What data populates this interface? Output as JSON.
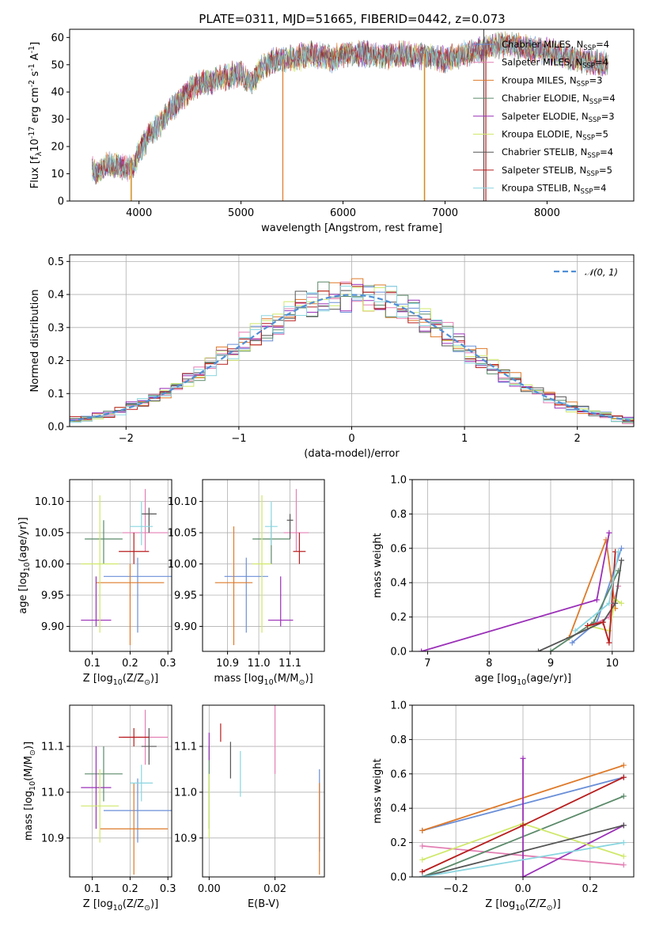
{
  "figure": {
    "title": "PLATE=0311, MJD=51665, FIBERID=0442, z=0.073"
  },
  "series": [
    {
      "name": "Chabrier MILES, N$_{SSP}$=4",
      "label_main": "Chabrier MILES, N",
      "label_sub": "SSP",
      "label_tail": "=4",
      "color": "#6a8fd8"
    },
    {
      "name": "Salpeter MILES, N$_{SSP}$=4",
      "label_main": "Salpeter MILES, N",
      "label_sub": "SSP",
      "label_tail": "=4",
      "color": "#e37fb3"
    },
    {
      "name": "Kroupa MILES, N$_{SSP}$=3",
      "label_main": "Kroupa MILES, N",
      "label_sub": "SSP",
      "label_tail": "=3",
      "color": "#de7a2a"
    },
    {
      "name": "Chabrier ELODIE, N$_{SSP}$=4",
      "label_main": "Chabrier ELODIE, N",
      "label_sub": "SSP",
      "label_tail": "=4",
      "color": "#5b8a6a"
    },
    {
      "name": "Salpeter ELODIE, N$_{SSP}$=3",
      "label_main": "Salpeter ELODIE, N",
      "label_sub": "SSP",
      "label_tail": "=3",
      "color": "#9b30b8"
    },
    {
      "name": "Kroupa ELODIE, N$_{SSP}$=5",
      "label_main": "Kroupa ELODIE, N",
      "label_sub": "SSP",
      "label_tail": "=5",
      "color": "#cfe86a"
    },
    {
      "name": "Chabrier STELIB, N$_{SSP}$=4",
      "label_main": "Chabrier STELIB, N",
      "label_sub": "SSP",
      "label_tail": "=4",
      "color": "#555555"
    },
    {
      "name": "Salpeter STELIB, N$_{SSP}$=5",
      "label_main": "Salpeter STELIB, N",
      "label_sub": "SSP",
      "label_tail": "=5",
      "color": "#b81d1d"
    },
    {
      "name": "Kroupa STELIB, N$_{SSP}$=4",
      "label_main": "Kroupa STELIB, N",
      "label_sub": "SSP",
      "label_tail": "=4",
      "color": "#8ad6e0"
    }
  ],
  "chart_data": [
    {
      "id": "spectrum",
      "type": "line",
      "title": "PLATE=0311, MJD=51665, FIBERID=0442, z=0.073",
      "xlabel": "wavelength [Angstrom, rest frame]",
      "ylabel": "Flux [f$_\\lambda$10$^{-17}$ erg cm$^{-2}$ s$^{-1}$ A$^{-1}$]",
      "xlim": [
        3320,
        8850
      ],
      "ylim": [
        0,
        63
      ],
      "xticks": [
        4000,
        5000,
        6000,
        7000,
        8000
      ],
      "yticks": [
        0,
        10,
        20,
        30,
        40,
        50,
        60
      ],
      "grid": false,
      "legend": "right",
      "spectrum_envelope": {
        "x": [
          3540,
          3600,
          3700,
          3800,
          3900,
          3950,
          4000,
          4100,
          4200,
          4300,
          4400,
          4500,
          4600,
          4700,
          4800,
          4900,
          5000,
          5100,
          5200,
          5300,
          5400,
          5500,
          5600,
          5700,
          5800,
          5900,
          6000,
          6200,
          6400,
          6600,
          6800,
          7000,
          7200,
          7400,
          7600,
          7800,
          8000,
          8200,
          8400,
          8600
        ],
        "y": [
          12,
          10,
          14,
          13,
          12,
          13,
          18,
          24,
          28,
          33,
          37,
          41,
          43,
          44,
          45,
          46,
          47,
          43,
          49,
          51,
          52,
          52,
          53,
          54,
          53,
          52,
          54,
          54,
          53,
          54,
          53,
          52,
          54,
          56,
          58,
          56,
          55,
          53,
          51,
          50
        ]
      },
      "spikes": [
        {
          "x": 3920,
          "y_low": 0,
          "y_high": 14,
          "series_color": "#cfe86a"
        },
        {
          "x": 3925,
          "y_low": 0,
          "y_high": 14,
          "series_color": "#de7a2a"
        },
        {
          "x": 5410,
          "y_low": 0,
          "y_high": 52,
          "series_color": "#de7a2a"
        },
        {
          "x": 6795,
          "y_low": 0,
          "y_high": 54,
          "series_color": "#cfe86a"
        },
        {
          "x": 6800,
          "y_low": 0,
          "y_high": 54,
          "series_color": "#de7a2a"
        },
        {
          "x": 7380,
          "y_low": 0,
          "y_high": 63,
          "series_color": "#555555"
        },
        {
          "x": 7400,
          "y_low": 0,
          "y_high": 58,
          "series_color": "#b81d1d"
        }
      ]
    },
    {
      "id": "residuals",
      "type": "line",
      "xlabel": "(data-model)/error",
      "ylabel": "Normed distribution",
      "xlim": [
        -2.5,
        2.5
      ],
      "ylim": [
        0,
        0.52
      ],
      "xticks": [
        -2,
        -1,
        0,
        1,
        2
      ],
      "yticks": [
        0.0,
        0.1,
        0.2,
        0.3,
        0.4,
        0.5
      ],
      "grid": true,
      "legend": "top-right",
      "reference_label": "$\\mathcal{N}(0,1)$",
      "reference_label_text": "𝒩(0, 1)",
      "reference_color": "#4f8fd6"
    },
    {
      "id": "age_vs_Z",
      "type": "scatter",
      "xlabel": "Z [log$_{10}$(Z/Z$_\\odot$)]",
      "ylabel": "age  [log$_{10}$(age/yr)]",
      "xlim": [
        0.04,
        0.31
      ],
      "ylim": [
        9.86,
        10.135
      ],
      "xticks": [
        0.1,
        0.2,
        0.3
      ],
      "yticks": [
        9.9,
        9.95,
        10.0,
        10.05,
        10.1
      ],
      "grid": true,
      "points": [
        {
          "x": 0.22,
          "y": 9.98,
          "xerr": 0.09,
          "yerr_low": 0.09,
          "yerr_high": 0.03
        },
        {
          "x": 0.24,
          "y": 10.05,
          "xerr": 0.06,
          "yerr_low": 0.03,
          "yerr_high": 0.07
        },
        {
          "x": 0.2,
          "y": 9.97,
          "xerr": 0.09,
          "yerr_low": 0.1,
          "yerr_high": 0.03
        },
        {
          "x": 0.13,
          "y": 10.04,
          "xerr": 0.05,
          "yerr_low": 0.04,
          "yerr_high": 0.03
        },
        {
          "x": 0.11,
          "y": 9.91,
          "xerr": 0.04,
          "yerr_low": 0.01,
          "yerr_high": 0.07
        },
        {
          "x": 0.12,
          "y": 10.0,
          "xerr": 0.05,
          "yerr_low": 0.11,
          "yerr_high": 0.11
        },
        {
          "x": 0.25,
          "y": 10.08,
          "xerr": 0.02,
          "yerr_low": 0.03,
          "yerr_high": 0.01
        },
        {
          "x": 0.21,
          "y": 10.02,
          "xerr": 0.04,
          "yerr_low": 0.02,
          "yerr_high": 0.03
        },
        {
          "x": 0.23,
          "y": 10.06,
          "xerr": 0.03,
          "yerr_low": 0.03,
          "yerr_high": 0.04
        }
      ]
    },
    {
      "id": "age_vs_mass",
      "type": "scatter",
      "xlabel": "mass [log$_{10}$(M/M$_\\odot$)]",
      "ylabel": "",
      "xlim": [
        10.82,
        11.21
      ],
      "ylim": [
        9.86,
        10.135
      ],
      "xticks": [
        10.9,
        11.0,
        11.1
      ],
      "yticks": [
        9.9,
        9.95,
        10.0,
        10.05,
        10.1
      ],
      "grid": true,
      "points": [
        {
          "x": 10.96,
          "y": 9.98,
          "xerr": 0.07,
          "yerr_low": 0.09,
          "yerr_high": 0.03
        },
        {
          "x": 11.12,
          "y": 10.05,
          "xerr": 0.04,
          "yerr_low": 0.03,
          "yerr_high": 0.07
        },
        {
          "x": 10.92,
          "y": 9.97,
          "xerr": 0.06,
          "yerr_low": 0.1,
          "yerr_high": 0.09
        },
        {
          "x": 11.04,
          "y": 10.04,
          "xerr": 0.06,
          "yerr_low": 0.04,
          "yerr_high": 0.03
        },
        {
          "x": 11.07,
          "y": 9.91,
          "xerr": 0.04,
          "yerr_low": 0.01,
          "yerr_high": 0.07
        },
        {
          "x": 11.01,
          "y": 10.0,
          "xerr": 0.03,
          "yerr_low": 0.11,
          "yerr_high": 0.11
        },
        {
          "x": 11.1,
          "y": 10.07,
          "xerr": 0.01,
          "yerr_low": 0.03,
          "yerr_high": 0.01
        },
        {
          "x": 11.13,
          "y": 10.02,
          "xerr": 0.02,
          "yerr_low": 0.02,
          "yerr_high": 0.03
        },
        {
          "x": 11.04,
          "y": 10.06,
          "xerr": 0.02,
          "yerr_low": 0.03,
          "yerr_high": 0.04
        }
      ]
    },
    {
      "id": "weight_vs_age",
      "type": "line",
      "xlabel": "age  [log$_{10}$(age/yr)]",
      "ylabel": "mass weight",
      "xlim": [
        6.75,
        10.35
      ],
      "ylim": [
        0,
        1.0
      ],
      "xticks": [
        7,
        8,
        9,
        10
      ],
      "yticks": [
        0.0,
        0.2,
        0.4,
        0.6,
        0.8,
        1.0
      ],
      "grid": true,
      "series_points": [
        {
          "x": [
            9.35,
            9.75,
            10.15
          ],
          "y": [
            0.05,
            0.17,
            0.6
          ]
        },
        {
          "x": [
            9.65,
            9.95,
            10.1
          ],
          "y": [
            0.15,
            0.2,
            0.38
          ]
        },
        {
          "x": [
            9.3,
            9.9,
            10.05
          ],
          "y": [
            0.08,
            0.65,
            0.25
          ]
        },
        {
          "x": [
            9.0,
            9.7,
            10.1
          ],
          "y": [
            0.0,
            0.17,
            0.47
          ]
        },
        {
          "x": [
            6.9,
            9.75,
            9.95
          ],
          "y": [
            0.0,
            0.3,
            0.69
          ]
        },
        {
          "x": [
            9.6,
            9.95,
            10.05,
            10.15
          ],
          "y": [
            0.15,
            0.12,
            0.3,
            0.28
          ]
        },
        {
          "x": [
            8.8,
            9.85,
            10.05,
            10.15
          ],
          "y": [
            0.0,
            0.17,
            0.28,
            0.53
          ]
        },
        {
          "x": [
            9.6,
            9.85,
            9.95,
            10.05
          ],
          "y": [
            0.15,
            0.17,
            0.05,
            0.58
          ]
        },
        {
          "x": [
            9.4,
            9.95,
            10.1
          ],
          "y": [
            0.12,
            0.28,
            0.58
          ]
        }
      ]
    },
    {
      "id": "mass_vs_Z",
      "type": "scatter",
      "xlabel": "Z [log$_{10}$(Z/Z$_\\odot$)]",
      "ylabel": "mass [log$_{10}$(M/M$_\\odot$)]",
      "xlim": [
        0.04,
        0.31
      ],
      "ylim": [
        10.815,
        11.19
      ],
      "xticks": [
        0.1,
        0.2,
        0.3
      ],
      "yticks": [
        10.9,
        11.0,
        11.1
      ],
      "grid": true,
      "points": [
        {
          "x": 0.22,
          "y": 10.96,
          "xerr": 0.09,
          "yerr": 0.07
        },
        {
          "x": 0.24,
          "y": 11.12,
          "xerr": 0.06,
          "yerr": 0.06
        },
        {
          "x": 0.21,
          "y": 10.92,
          "xerr": 0.09,
          "yerr": 0.1
        },
        {
          "x": 0.13,
          "y": 11.04,
          "xerr": 0.05,
          "yerr": 0.06
        },
        {
          "x": 0.11,
          "y": 11.01,
          "xerr": 0.04,
          "yerr": 0.09
        },
        {
          "x": 0.12,
          "y": 10.97,
          "xerr": 0.05,
          "yerr": 0.08
        },
        {
          "x": 0.25,
          "y": 11.1,
          "xerr": 0.02,
          "yerr": 0.04
        },
        {
          "x": 0.21,
          "y": 11.12,
          "xerr": 0.04,
          "yerr": 0.02
        },
        {
          "x": 0.23,
          "y": 11.02,
          "xerr": 0.03,
          "yerr": 0.04
        }
      ]
    },
    {
      "id": "mass_vs_ebv",
      "type": "scatter",
      "xlabel": "E(B-V)",
      "ylabel": "",
      "xlim": [
        -0.002,
        0.035
      ],
      "ylim": [
        10.815,
        11.19
      ],
      "xticks": [
        0.0,
        0.02
      ],
      "yticks": [
        10.9,
        11.0,
        11.1
      ],
      "grid": true,
      "points": [
        {
          "x": 0.0335,
          "y": 10.96,
          "yerr": 0.09
        },
        {
          "x": 0.02,
          "y": 11.12,
          "yerr": 0.08
        },
        {
          "x": 0.0335,
          "y": 10.92,
          "yerr": 0.1
        },
        {
          "x": 0.0,
          "y": 11.01,
          "yerr": 0.09
        },
        {
          "x": 0.0,
          "y": 11.1,
          "yerr": 0.03
        },
        {
          "x": 0.0,
          "y": 10.97,
          "yerr": 0.07
        },
        {
          "x": 0.0065,
          "y": 11.07,
          "yerr": 0.04
        },
        {
          "x": 0.0035,
          "y": 11.13,
          "yerr": 0.02
        },
        {
          "x": 0.0095,
          "y": 11.04,
          "yerr": 0.05
        }
      ]
    },
    {
      "id": "weight_vs_Z",
      "type": "line",
      "xlabel": "Z [log$_{10}$(Z/Z$_\\odot$)]",
      "ylabel": "mass weight",
      "xlim": [
        -0.33,
        0.33
      ],
      "ylim": [
        0,
        1.0
      ],
      "xticks": [
        -0.2,
        0.0,
        0.2
      ],
      "yticks": [
        0.0,
        0.2,
        0.4,
        0.6,
        0.8,
        1.0
      ],
      "grid": true,
      "series_points": [
        {
          "x": [
            -0.3,
            0.3
          ],
          "y": [
            0.27,
            0.58
          ]
        },
        {
          "x": [
            -0.3,
            0.3
          ],
          "y": [
            0.18,
            0.07
          ]
        },
        {
          "x": [
            -0.3,
            0.3
          ],
          "y": [
            0.27,
            0.65
          ]
        },
        {
          "x": [
            -0.3,
            0.3
          ],
          "y": [
            0.0,
            0.47
          ]
        },
        {
          "x": [
            0.0,
            0.0,
            0.3
          ],
          "y": [
            0.69,
            0.0,
            0.3
          ]
        },
        {
          "x": [
            -0.3,
            0.0,
            0.3
          ],
          "y": [
            0.1,
            0.31,
            0.12
          ]
        },
        {
          "x": [
            -0.3,
            0.3
          ],
          "y": [
            0.0,
            0.3
          ]
        },
        {
          "x": [
            -0.3,
            0.0,
            0.3
          ],
          "y": [
            0.03,
            0.3,
            0.58
          ]
        },
        {
          "x": [
            -0.3,
            0.3
          ],
          "y": [
            0.0,
            0.2
          ]
        }
      ]
    }
  ]
}
